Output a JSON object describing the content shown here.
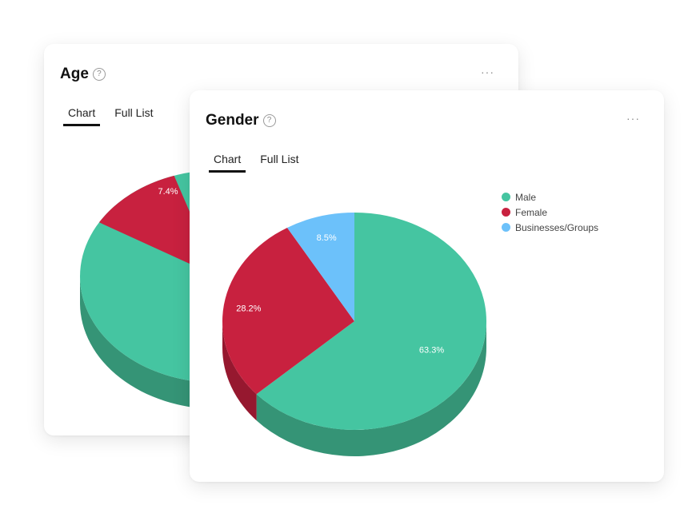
{
  "age_card": {
    "title": "Age",
    "help_icon": "?",
    "more_icon": "···",
    "tabs": [
      {
        "label": "Chart",
        "active": true
      },
      {
        "label": "Full List",
        "active": false
      }
    ]
  },
  "gender_card": {
    "title": "Gender",
    "help_icon": "?",
    "more_icon": "···",
    "tabs": [
      {
        "label": "Chart",
        "active": true
      },
      {
        "label": "Full List",
        "active": false
      }
    ]
  },
  "chart_data": [
    {
      "type": "pie",
      "slices": [
        {
          "name": "",
          "value": null,
          "label": "",
          "color": "#45c5a1"
        },
        {
          "name": "",
          "value": 7.4,
          "label": "7.4%",
          "color": "#c8213f"
        }
      ],
      "style": "3d"
    },
    {
      "type": "pie",
      "style": "3d",
      "legend_position": "top-right",
      "slices": [
        {
          "name": "Male",
          "value": 63.3,
          "label": "63.3%",
          "color": "#45c5a1",
          "side_color": "#359476"
        },
        {
          "name": "Female",
          "value": 28.2,
          "label": "28.2%",
          "color": "#c8213f",
          "side_color": "#96182f"
        },
        {
          "name": "Businesses/Groups",
          "value": 8.5,
          "label": "8.5%",
          "color": "#6cc1fa",
          "side_color": "#4a95c7"
        }
      ]
    }
  ]
}
